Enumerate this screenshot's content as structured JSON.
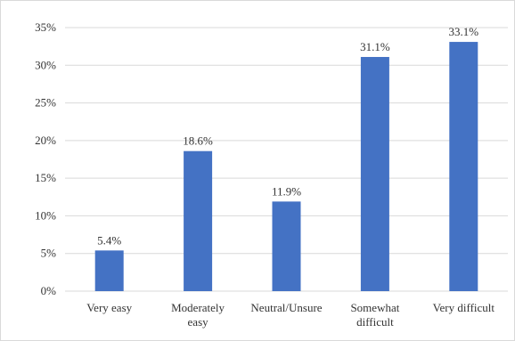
{
  "chart_data": {
    "type": "bar",
    "categories": [
      [
        "Very easy"
      ],
      [
        "Moderately",
        "easy"
      ],
      [
        "Neutral/Unsure"
      ],
      [
        "Somewhat",
        "difficult"
      ],
      [
        "Very difficult"
      ]
    ],
    "values": [
      5.4,
      18.6,
      11.9,
      31.1,
      33.1
    ],
    "data_labels": [
      "5.4%",
      "18.6%",
      "11.9%",
      "31.1%",
      "33.1%"
    ],
    "y_ticks": [
      0,
      5,
      10,
      15,
      20,
      25,
      30,
      35
    ],
    "y_tick_labels": [
      "0%",
      "5%",
      "10%",
      "15%",
      "20%",
      "25%",
      "30%",
      "35%"
    ],
    "ylim": [
      0,
      35
    ],
    "title": "",
    "xlabel": "",
    "ylabel": "",
    "grid": true,
    "legend": false,
    "bar_color": "#4472c4",
    "grid_color": "#d9d9d9"
  }
}
